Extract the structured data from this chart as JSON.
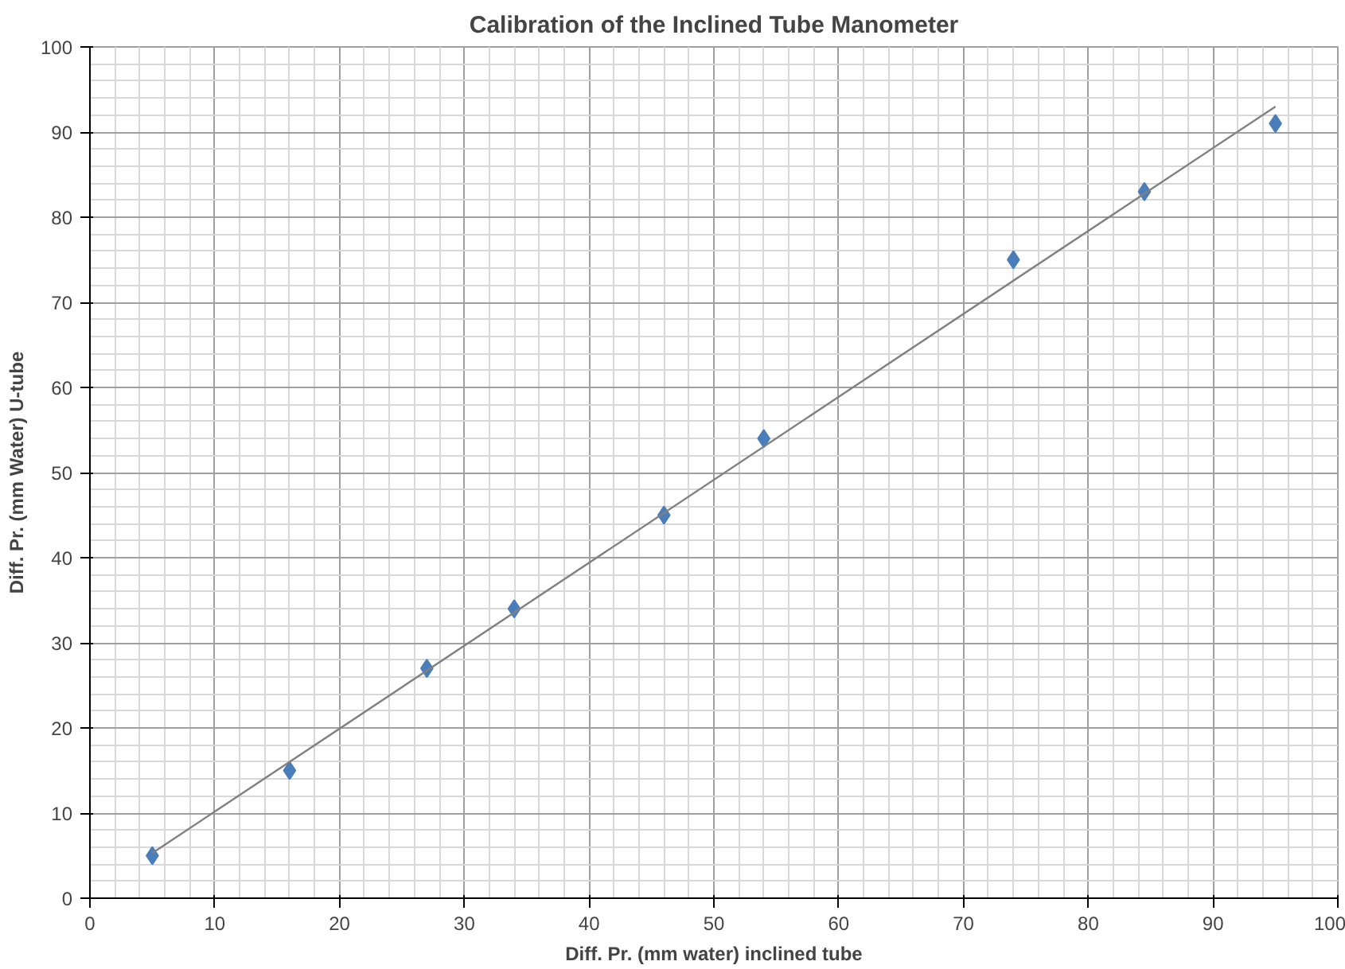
{
  "chart_data": {
    "type": "scatter",
    "title": "Calibration of the Inclined Tube Manometer",
    "xlabel": "Diff. Pr. (mm water) inclined tube",
    "ylabel": "Diff. Pr. (mm Water) U-tube",
    "xlim": [
      0,
      100
    ],
    "ylim": [
      0,
      100
    ],
    "xticks": [
      0,
      10,
      20,
      30,
      40,
      50,
      60,
      70,
      80,
      90,
      100
    ],
    "yticks": [
      0,
      10,
      20,
      30,
      40,
      50,
      60,
      70,
      80,
      90,
      100
    ],
    "grid": true,
    "series": [
      {
        "color": "#4a7ebb",
        "marker": "diamond",
        "x": [
          5,
          16,
          27,
          34,
          46,
          54,
          74,
          84.5,
          95
        ],
        "values": [
          5,
          15,
          27,
          34,
          45,
          54,
          75,
          83,
          91
        ]
      },
      {
        "type": "line",
        "color": "#808080",
        "x": [
          5,
          95
        ],
        "values": [
          5.3,
          93
        ]
      }
    ]
  }
}
